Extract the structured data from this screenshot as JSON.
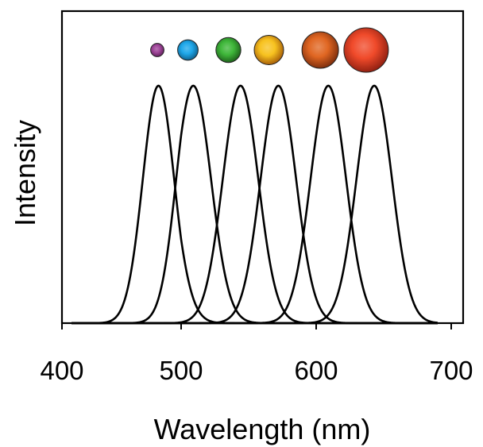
{
  "chart_data": {
    "type": "line",
    "title": "",
    "xlabel": "Wavelength (nm)",
    "ylabel": "Intensity",
    "xlim": [
      400,
      700
    ],
    "ylim": [
      0,
      1
    ],
    "xticks": [
      400,
      500,
      600,
      700
    ],
    "x_tick_labels": [
      "400",
      "500",
      "600",
      "700"
    ],
    "grid": false,
    "legend": "none",
    "series": [
      {
        "peak_nm": 481,
        "fwhm_nm": 31,
        "amplitude": 1.0,
        "color": "#000000"
      },
      {
        "peak_nm": 509,
        "fwhm_nm": 31,
        "amplitude": 1.0,
        "color": "#000000"
      },
      {
        "peak_nm": 544,
        "fwhm_nm": 31,
        "amplitude": 1.0,
        "color": "#000000"
      },
      {
        "peak_nm": 572,
        "fwhm_nm": 31,
        "amplitude": 1.0,
        "color": "#000000"
      },
      {
        "peak_nm": 609,
        "fwhm_nm": 31,
        "amplitude": 1.0,
        "color": "#000000"
      },
      {
        "peak_nm": 643,
        "fwhm_nm": 31,
        "amplitude": 1.0,
        "color": "#000000"
      }
    ],
    "markers": [
      {
        "x_nm": 480,
        "size": 0.3,
        "color": "#a0479a",
        "edge": "#5e1f5a"
      },
      {
        "x_nm": 505,
        "size": 0.46,
        "color": "#1fa8ea",
        "edge": "#0d5f8c"
      },
      {
        "x_nm": 535,
        "size": 0.56,
        "color": "#3fb73a",
        "edge": "#1d5e1a"
      },
      {
        "x_nm": 565,
        "size": 0.66,
        "color": "#f7c21f",
        "edge": "#a35a08"
      },
      {
        "x_nm": 603,
        "size": 0.82,
        "color": "#e06622",
        "edge": "#7a2c0c"
      },
      {
        "x_nm": 637,
        "size": 1.0,
        "color": "#f04a2a",
        "edge": "#8d1e10"
      }
    ]
  }
}
